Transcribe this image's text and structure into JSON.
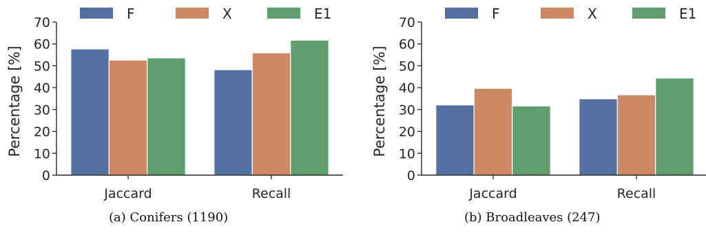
{
  "chart_data": [
    {
      "type": "bar",
      "caption": "(a) Conifers (1190)",
      "categories": [
        "Jaccard",
        "Recall"
      ],
      "series": [
        {
          "name": "F",
          "values": [
            57.7,
            48.2
          ]
        },
        {
          "name": "X",
          "values": [
            52.6,
            55.9
          ]
        },
        {
          "name": "E1",
          "values": [
            53.6,
            61.7
          ]
        }
      ],
      "ylabel": "Percentage [%]",
      "ylim": [
        0,
        70
      ],
      "yticks": [
        0,
        10,
        20,
        30,
        40,
        50,
        60,
        70
      ],
      "legend": "top",
      "grid": false
    },
    {
      "type": "bar",
      "caption": "(b) Broadleaves (247)",
      "categories": [
        "Jaccard",
        "Recall"
      ],
      "series": [
        {
          "name": "F",
          "values": [
            32.1,
            34.9
          ]
        },
        {
          "name": "X",
          "values": [
            39.7,
            36.7
          ]
        },
        {
          "name": "E1",
          "values": [
            31.6,
            44.4
          ]
        }
      ],
      "ylabel": "Percentage [%]",
      "ylim": [
        0,
        70
      ],
      "yticks": [
        0,
        10,
        20,
        30,
        40,
        50,
        60,
        70
      ],
      "legend": "top",
      "grid": false
    }
  ],
  "colors": {
    "F": "#5470a0",
    "X": "#cc8963",
    "E1": "#5f9e6e",
    "axis": "#262626"
  }
}
